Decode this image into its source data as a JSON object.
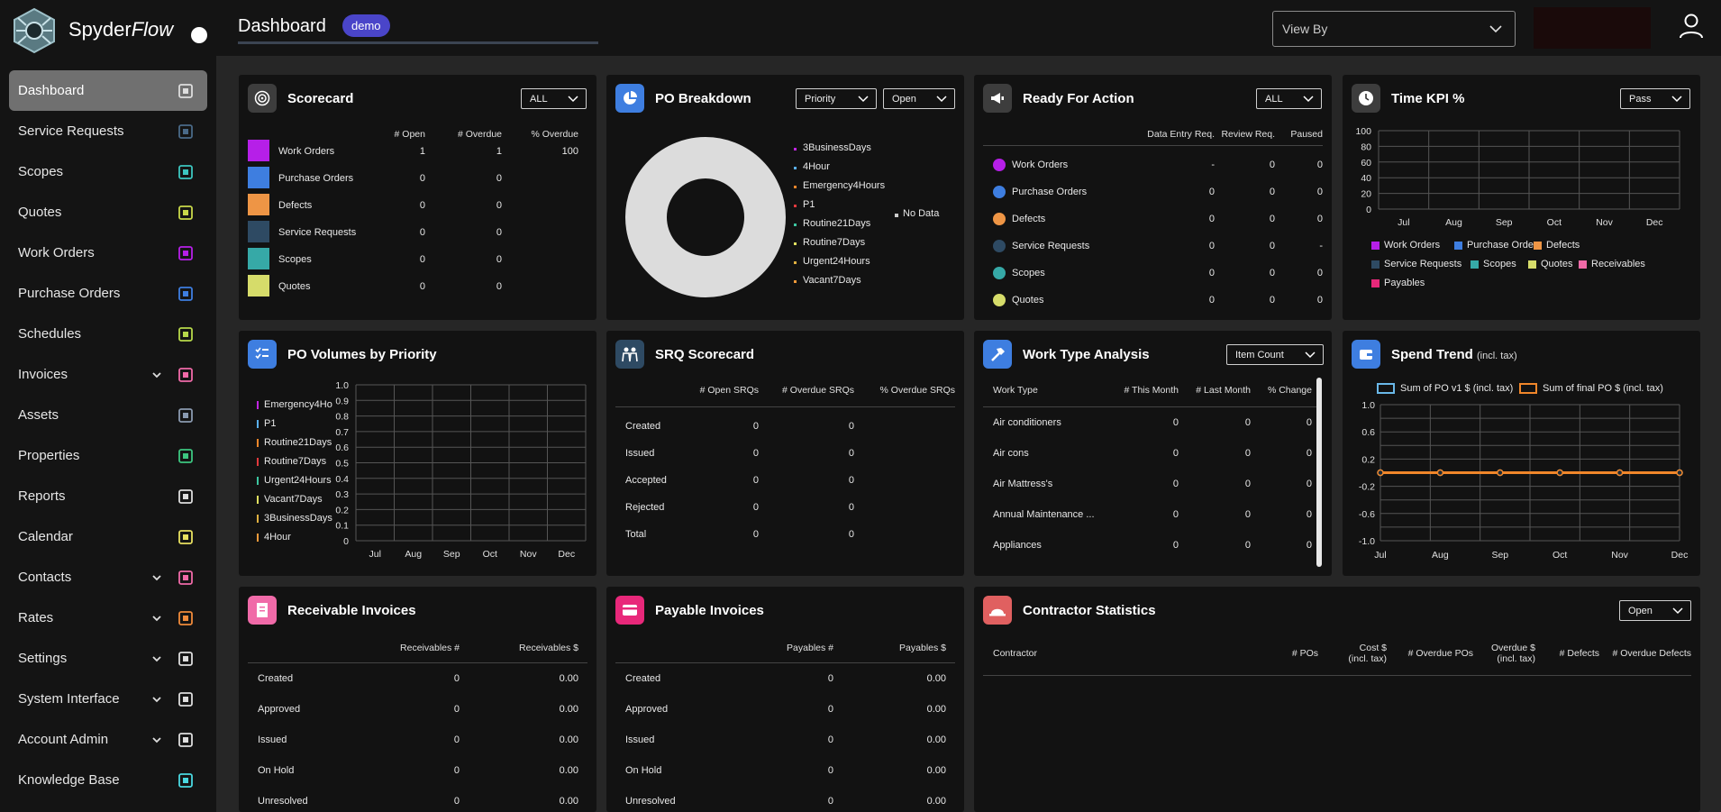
{
  "app": {
    "name": "Spyder",
    "name_italic": "Flow"
  },
  "header": {
    "title": "Dashboard",
    "badge": "demo",
    "view_by": "View By"
  },
  "colors": {
    "accent": "#4a45c9",
    "active_nav": "#707070",
    "card_bg": "#121212"
  },
  "sidebar": {
    "items": [
      {
        "label": "Dashboard",
        "icon": "bar-chart-icon",
        "active": true,
        "expand": false
      },
      {
        "label": "Service Requests",
        "icon": "people-icon",
        "expand": false
      },
      {
        "label": "Scopes",
        "icon": "list-icon",
        "expand": false
      },
      {
        "label": "Quotes",
        "icon": "tools-icon",
        "expand": false
      },
      {
        "label": "Work Orders",
        "icon": "hammer-icon",
        "expand": false
      },
      {
        "label": "Purchase Orders",
        "icon": "truck-icon",
        "expand": false
      },
      {
        "label": "Schedules",
        "icon": "recycle-icon",
        "expand": false
      },
      {
        "label": "Invoices",
        "icon": "invoice-icon",
        "expand": true
      },
      {
        "label": "Assets",
        "icon": "pulse-icon",
        "expand": false
      },
      {
        "label": "Properties",
        "icon": "building-icon",
        "expand": false
      },
      {
        "label": "Reports",
        "icon": "trend-icon",
        "expand": false
      },
      {
        "label": "Calendar",
        "icon": "calendar-icon",
        "expand": false
      },
      {
        "label": "Contacts",
        "icon": "contact-icon",
        "expand": true
      },
      {
        "label": "Rates",
        "icon": "clipboard-icon",
        "expand": true
      },
      {
        "label": "Settings",
        "icon": "gear-icon",
        "expand": true
      },
      {
        "label": "System Interface",
        "icon": "chip-icon",
        "expand": true
      },
      {
        "label": "Account Admin",
        "icon": "users-icon",
        "expand": true
      },
      {
        "label": "Knowledge Base",
        "icon": "book-icon",
        "expand": false
      }
    ]
  },
  "scorecard": {
    "title": "Scorecard",
    "filter": "ALL",
    "headers": [
      "# Open",
      "# Overdue",
      "% Overdue"
    ],
    "rows": [
      {
        "label": "Work Orders",
        "open": "1",
        "overdue": "1",
        "pct": "100",
        "color": "#b61fe8"
      },
      {
        "label": "Purchase Orders",
        "open": "0",
        "overdue": "0",
        "pct": "",
        "color": "#3e7ee0"
      },
      {
        "label": "Defects",
        "open": "0",
        "overdue": "0",
        "pct": "",
        "color": "#ee9545"
      },
      {
        "label": "Service Requests",
        "open": "0",
        "overdue": "0",
        "pct": "",
        "color": "#2e4a63"
      },
      {
        "label": "Scopes",
        "open": "0",
        "overdue": "0",
        "pct": "",
        "color": "#36a9a7"
      },
      {
        "label": "Quotes",
        "open": "0",
        "overdue": "0",
        "pct": "",
        "color": "#d6dc6a"
      }
    ]
  },
  "po_breakdown": {
    "title": "PO Breakdown",
    "filter1": "Priority",
    "filter2": "Open",
    "no_data": "No Data",
    "legend": [
      {
        "label": "3BusinessDays",
        "color": "#c025e0"
      },
      {
        "label": "4Hour",
        "color": "#5ab0f0"
      },
      {
        "label": "Emergency4Hours",
        "color": "#f0862a"
      },
      {
        "label": "P1",
        "color": "#e2393d"
      },
      {
        "label": "Routine21Days",
        "color": "#3cc6a0"
      },
      {
        "label": "Routine7Days",
        "color": "#e0e060"
      },
      {
        "label": "Urgent24Hours",
        "color": "#e0b040"
      },
      {
        "label": "Vacant7Days",
        "color": "#f09a3a"
      }
    ]
  },
  "ready_for_action": {
    "title": "Ready For Action",
    "filter": "ALL",
    "headers": [
      "Data Entry Req.",
      "Review Req.",
      "Paused"
    ],
    "rows": [
      {
        "label": "Work Orders",
        "a": "-",
        "b": "0",
        "c": "0",
        "color": "#b61fe8"
      },
      {
        "label": "Purchase Orders",
        "a": "0",
        "b": "0",
        "c": "0",
        "color": "#3e7ee0"
      },
      {
        "label": "Defects",
        "a": "0",
        "b": "0",
        "c": "0",
        "color": "#ee9545"
      },
      {
        "label": "Service Requests",
        "a": "0",
        "b": "0",
        "c": "-",
        "color": "#2e4a63"
      },
      {
        "label": "Scopes",
        "a": "0",
        "b": "0",
        "c": "0",
        "color": "#36a9a7"
      },
      {
        "label": "Quotes",
        "a": "0",
        "b": "0",
        "c": "0",
        "color": "#d6dc6a"
      }
    ]
  },
  "time_kpi": {
    "title": "Time KPI %",
    "filter": "Pass",
    "y_ticks": [
      "100",
      "80",
      "60",
      "40",
      "20",
      "0"
    ],
    "x_ticks": [
      "Jul",
      "Aug",
      "Sep",
      "Oct",
      "Nov",
      "Dec"
    ],
    "legend": [
      {
        "label": "Work Orders",
        "color": "#b61fe8"
      },
      {
        "label": "Purchase Orders",
        "color": "#3e7ee0"
      },
      {
        "label": "Defects",
        "color": "#ee9545"
      },
      {
        "label": "Service Requests",
        "color": "#2e4a63"
      },
      {
        "label": "Scopes",
        "color": "#36a9a7"
      },
      {
        "label": "Quotes",
        "color": "#d6dc6a"
      },
      {
        "label": "Receivables",
        "color": "#f06aa8"
      },
      {
        "label": "Payables",
        "color": "#e8287a"
      }
    ]
  },
  "po_volumes": {
    "title": "PO Volumes by Priority",
    "y_ticks": [
      "1.0",
      "0.9",
      "0.8",
      "0.7",
      "0.6",
      "0.5",
      "0.4",
      "0.3",
      "0.2",
      "0.1",
      "0"
    ],
    "x_ticks": [
      "Jul",
      "Aug",
      "Sep",
      "Oct",
      "Nov",
      "Dec"
    ],
    "legend": [
      {
        "label": "Emergency4Ho",
        "color": "#c025e0"
      },
      {
        "label": "P1",
        "color": "#5ab0f0"
      },
      {
        "label": "Routine21Days",
        "color": "#f0862a"
      },
      {
        "label": "Routine7Days",
        "color": "#e2393d"
      },
      {
        "label": "Urgent24Hours",
        "color": "#3cc6a0"
      },
      {
        "label": "Vacant7Days",
        "color": "#e0e060"
      },
      {
        "label": "3BusinessDays",
        "color": "#e0b040"
      },
      {
        "label": "4Hour",
        "color": "#f09a3a"
      }
    ]
  },
  "srq_scorecard": {
    "title": "SRQ Scorecard",
    "headers": [
      "# Open SRQs",
      "# Overdue SRQs",
      "% Overdue SRQs"
    ],
    "rows": [
      {
        "label": "Created",
        "a": "0",
        "b": "0",
        "c": ""
      },
      {
        "label": "Issued",
        "a": "0",
        "b": "0",
        "c": ""
      },
      {
        "label": "Accepted",
        "a": "0",
        "b": "0",
        "c": ""
      },
      {
        "label": "Rejected",
        "a": "0",
        "b": "0",
        "c": ""
      },
      {
        "label": "Total",
        "a": "0",
        "b": "0",
        "c": ""
      }
    ]
  },
  "work_type": {
    "title": "Work Type Analysis",
    "filter": "Item Count",
    "headers": [
      "Work Type",
      "# This Month",
      "# Last Month",
      "% Change"
    ],
    "rows": [
      {
        "label": "Air conditioners",
        "a": "0",
        "b": "0",
        "c": "0"
      },
      {
        "label": "Air cons",
        "a": "0",
        "b": "0",
        "c": "0"
      },
      {
        "label": "Air Mattress's",
        "a": "0",
        "b": "0",
        "c": "0"
      },
      {
        "label": "Annual Maintenance ...",
        "a": "0",
        "b": "0",
        "c": "0"
      },
      {
        "label": "Appliances",
        "a": "0",
        "b": "0",
        "c": "0"
      }
    ]
  },
  "spend_trend": {
    "title": "Spend Trend",
    "subtitle": "(incl. tax)",
    "y_ticks": [
      "1.0",
      "0.6",
      "0.2",
      "-0.2",
      "-0.6",
      "-1.0"
    ],
    "x_ticks": [
      "Jul",
      "Aug",
      "Sep",
      "Oct",
      "Nov",
      "Dec"
    ],
    "legend": [
      {
        "label": "Sum of PO v1 $ (incl. tax)",
        "color": "#6ab8e8"
      },
      {
        "label": "Sum of final PO $ (incl. tax)",
        "color": "#f0862a"
      }
    ]
  },
  "receivable": {
    "title": "Receivable Invoices",
    "headers": [
      "Receivables #",
      "Receivables $"
    ],
    "rows": [
      {
        "label": "Created",
        "a": "0",
        "b": "0.00"
      },
      {
        "label": "Approved",
        "a": "0",
        "b": "0.00"
      },
      {
        "label": "Issued",
        "a": "0",
        "b": "0.00"
      },
      {
        "label": "On Hold",
        "a": "0",
        "b": "0.00"
      },
      {
        "label": "Unresolved",
        "a": "0",
        "b": "0.00"
      }
    ]
  },
  "payable": {
    "title": "Payable Invoices",
    "headers": [
      "Payables #",
      "Payables $"
    ],
    "rows": [
      {
        "label": "Created",
        "a": "0",
        "b": "0.00"
      },
      {
        "label": "Approved",
        "a": "0",
        "b": "0.00"
      },
      {
        "label": "Issued",
        "a": "0",
        "b": "0.00"
      },
      {
        "label": "On Hold",
        "a": "0",
        "b": "0.00"
      },
      {
        "label": "Unresolved",
        "a": "0",
        "b": "0.00"
      }
    ]
  },
  "contractor": {
    "title": "Contractor Statistics",
    "filter": "Open",
    "headers": {
      "contractor": "Contractor",
      "pos": "# POs",
      "cost1": "Cost $",
      "cost2": "(incl. tax)",
      "overdue_pos": "# Overdue POs",
      "overdue1": "Overdue $",
      "overdue2": "(incl. tax)",
      "defects": "# Defects",
      "overdue_defects": "# Overdue Defects"
    }
  },
  "chart_data": [
    {
      "type": "line",
      "title": "Time KPI %",
      "x": [
        "Jul",
        "Aug",
        "Sep",
        "Oct",
        "Nov",
        "Dec"
      ],
      "ylim": [
        0,
        100
      ],
      "series": []
    },
    {
      "type": "bar",
      "title": "PO Volumes by Priority",
      "x": [
        "Jul",
        "Aug",
        "Sep",
        "Oct",
        "Nov",
        "Dec"
      ],
      "ylim": [
        0,
        1.0
      ],
      "series": []
    },
    {
      "type": "line",
      "title": "Spend Trend",
      "x": [
        "Jul",
        "Aug",
        "Sep",
        "Oct",
        "Nov",
        "Dec"
      ],
      "ylim": [
        -1.0,
        1.0
      ],
      "series": [
        {
          "name": "Sum of PO v1 $ (incl. tax)",
          "values": [
            0,
            0,
            0,
            0,
            0,
            0
          ]
        },
        {
          "name": "Sum of final PO $ (incl. tax)",
          "values": [
            0,
            0,
            0,
            0,
            0,
            0
          ]
        }
      ]
    }
  ]
}
